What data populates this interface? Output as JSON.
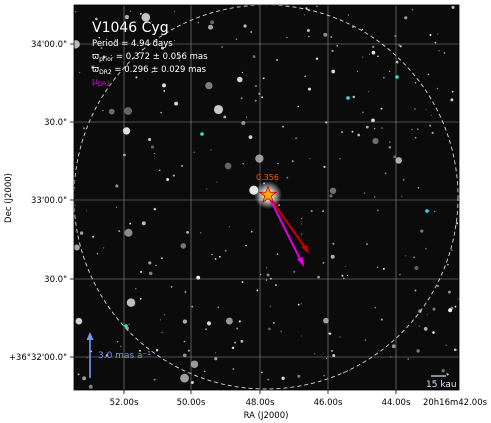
{
  "panel": {
    "title": "V1046 Cyg",
    "period_text": "Period =   4.94 days",
    "prior_label": "ϖ",
    "prior_sub": "prior",
    "prior_value": " = 0.372 ± 0.056 mas",
    "dr2_label": "ϖ",
    "dr2_sub": "DR2",
    "dr2_value": " = 0.296 ± 0.029 mas",
    "mu_label": "μ",
    "mu_sub": "DR2",
    "star_label": "0.356",
    "scale_arrow_label": "3.0 mas a⁻¹",
    "scale_bar_label": "15 kau"
  },
  "axes": {
    "xlabel": "RA (J2000)",
    "ylabel": "Dec (J2000)",
    "xticks": [
      "52.00s",
      "50.00s",
      "48.00s",
      "46.00s",
      "44.00s",
      "20h16m42.00s"
    ],
    "yticks": [
      "34'00.0\"",
      "30.0\"",
      "33'00.0\"",
      "30.0\"",
      "+36°32'00.0\""
    ]
  },
  "colors": {
    "background": "#0b0b0b",
    "grid": "#bdbdbd",
    "title_text": "#ffffff",
    "mu_text": "#e000e0",
    "star_fill": "#ffb000",
    "star_edge": "#d00000",
    "star_label": "#ff5a00",
    "red_arrow": "#c80000",
    "magenta_arrow": "#e000e0",
    "blue_arrow": "#7799ee",
    "cyan_marker": "#2ee6d6"
  }
}
